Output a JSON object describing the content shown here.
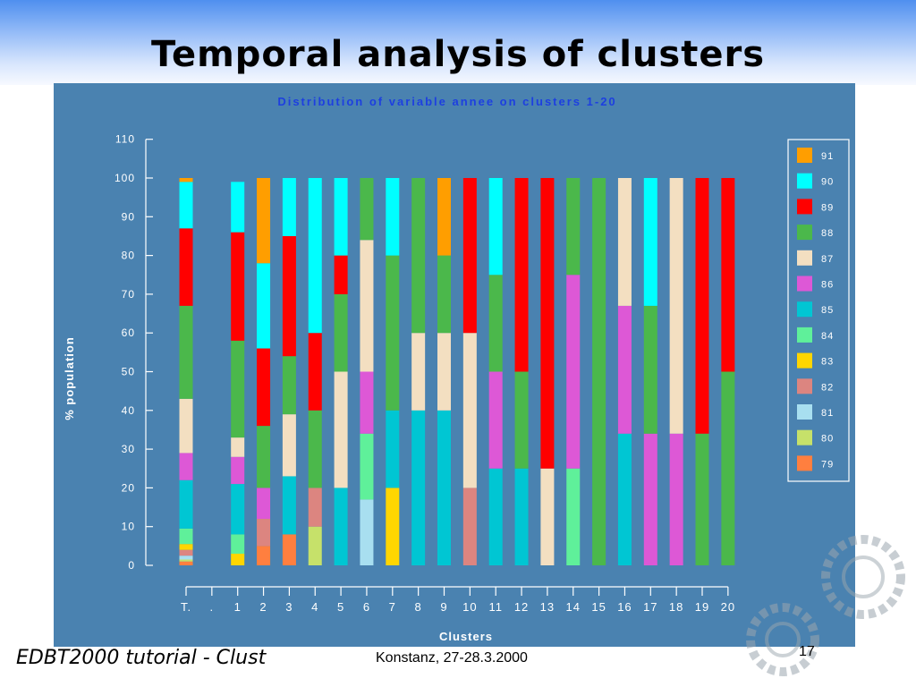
{
  "slide": {
    "title": "Temporal analysis of clusters",
    "footer_left": "EDBT2000 tutorial - Clust",
    "footer_center": "Konstanz, 27-28.3.2000",
    "page_number": "17"
  },
  "chart_data": {
    "type": "bar",
    "stacked": true,
    "title": "Distribution of variable annee on clusters 1-20",
    "xlabel": "Clusters",
    "ylabel": "% population",
    "ylim": [
      0,
      110
    ],
    "yticks": [
      0,
      10,
      20,
      30,
      40,
      50,
      60,
      70,
      80,
      90,
      100,
      110
    ],
    "categories": [
      "T.",
      ".",
      "1",
      "2",
      "3",
      "4",
      "5",
      "6",
      "7",
      "8",
      "9",
      "10",
      "11",
      "12",
      "13",
      "14",
      "15",
      "16",
      "17",
      "18",
      "19",
      "20"
    ],
    "legend_position": "right",
    "colors": {
      "91": "#ff9e00",
      "90": "#00ffff",
      "89": "#ff0000",
      "88": "#4bb84b",
      "87": "#f3dfc1",
      "86": "#dd58d6",
      "85": "#00c6d3",
      "84": "#5ff09a",
      "83": "#ffd600",
      "82": "#dc8580",
      "81": "#a8dff0",
      "80": "#c6e16a",
      "79": "#ff7f3f"
    },
    "series": [
      {
        "name": "79",
        "values": [
          1,
          0,
          0,
          5,
          8,
          0,
          0,
          0,
          0,
          0,
          0,
          0,
          0,
          0,
          0,
          0,
          0,
          0,
          0,
          0,
          0,
          0
        ]
      },
      {
        "name": "80",
        "values": [
          0.5,
          0,
          0,
          0,
          0,
          10,
          0,
          0,
          0,
          0,
          0,
          0,
          0,
          0,
          0,
          0,
          0,
          0,
          0,
          0,
          0,
          0
        ]
      },
      {
        "name": "81",
        "values": [
          1,
          0,
          0,
          0,
          0,
          0,
          0,
          17,
          0,
          0,
          0,
          0,
          0,
          0,
          0,
          0,
          0,
          0,
          0,
          0,
          0,
          0
        ]
      },
      {
        "name": "82",
        "values": [
          1.5,
          0,
          0,
          7,
          0,
          10,
          0,
          0,
          0,
          0,
          0,
          20,
          0,
          0,
          0,
          0,
          0,
          0,
          0,
          0,
          0,
          0
        ]
      },
      {
        "name": "83",
        "values": [
          1.5,
          0,
          3,
          0,
          0,
          0,
          0,
          0,
          20,
          0,
          0,
          0,
          0,
          0,
          0,
          0,
          0,
          0,
          0,
          0,
          0,
          0
        ]
      },
      {
        "name": "84",
        "values": [
          4,
          0,
          5,
          0,
          0,
          0,
          0,
          17,
          0,
          0,
          0,
          0,
          0,
          0,
          0,
          25,
          0,
          0,
          0,
          0,
          0,
          0
        ]
      },
      {
        "name": "85",
        "values": [
          12.5,
          0,
          13,
          0,
          15,
          0,
          20,
          0,
          20,
          40,
          40,
          0,
          25,
          25,
          0,
          0,
          0,
          34,
          0,
          0,
          0,
          0
        ]
      },
      {
        "name": "86",
        "values": [
          7,
          0,
          7,
          8,
          0,
          0,
          0,
          16,
          0,
          0,
          0,
          0,
          25,
          0,
          0,
          50,
          0,
          33,
          34,
          34,
          0,
          0
        ]
      },
      {
        "name": "87",
        "values": [
          14,
          0,
          5,
          0,
          16,
          0,
          30,
          34,
          0,
          20,
          20,
          40,
          0,
          0,
          25,
          0,
          0,
          33,
          0,
          66,
          0,
          0
        ]
      },
      {
        "name": "88",
        "values": [
          24,
          0,
          25,
          16,
          15,
          20,
          20,
          16,
          40,
          40,
          20,
          0,
          25,
          25,
          0,
          25,
          100,
          0,
          33,
          0,
          34,
          50
        ]
      },
      {
        "name": "89",
        "values": [
          20,
          0,
          28,
          20,
          31,
          20,
          10,
          0,
          0,
          0,
          0,
          40,
          0,
          50,
          75,
          0,
          0,
          0,
          0,
          0,
          66,
          50
        ]
      },
      {
        "name": "90",
        "values": [
          12,
          0,
          13,
          22,
          15,
          40,
          20,
          0,
          20,
          0,
          0,
          0,
          25,
          0,
          0,
          0,
          0,
          0,
          33,
          0,
          0,
          0
        ]
      },
      {
        "name": "91",
        "values": [
          1,
          0,
          0,
          22,
          0,
          0,
          0,
          0,
          0,
          0,
          20,
          0,
          0,
          0,
          0,
          0,
          0,
          0,
          0,
          0,
          0,
          0
        ]
      }
    ]
  }
}
